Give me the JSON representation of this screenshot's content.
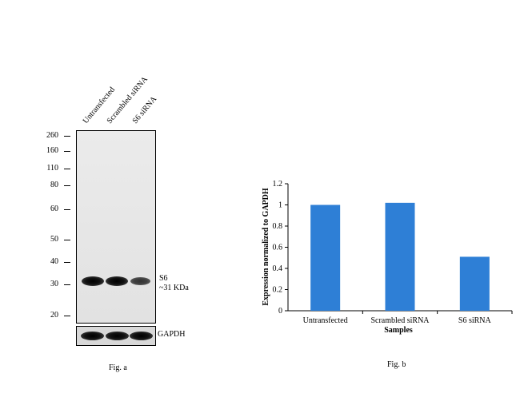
{
  "western_blot": {
    "lanes": [
      "Untransfected",
      "Scrambled siRNA",
      "S6 siRNA"
    ],
    "mw_markers": [
      "260",
      "160",
      "110",
      "80",
      "60",
      "50",
      "40",
      "30",
      "20"
    ],
    "mw_marker_values": [
      260,
      160,
      110,
      80,
      60,
      50,
      40,
      30,
      20
    ],
    "target_label": "S6",
    "target_size": "~31 KDa",
    "band_intensity": [
      1.0,
      1.0,
      0.5
    ],
    "loading_control_label": "GAPDH",
    "caption": "Fig. a"
  },
  "chart_data": {
    "type": "bar",
    "categories": [
      "Untransfected",
      "Scrambled siRNA",
      "S6 siRNA"
    ],
    "values": [
      1.0,
      1.02,
      0.51
    ],
    "title": "",
    "xlabel": "Samples",
    "ylabel": "Expression normalized to GAPDH",
    "ylim": [
      0,
      1.2
    ],
    "yticks": [
      "0",
      "0.2",
      "0.4",
      "0.6",
      "0.8",
      "1",
      "1.2"
    ],
    "ytick_values": [
      0,
      0.2,
      0.4,
      0.6,
      0.8,
      1,
      1.2
    ],
    "bar_color": "#2e7fd6",
    "grid": false,
    "legend": false,
    "caption": "Fig. b"
  }
}
